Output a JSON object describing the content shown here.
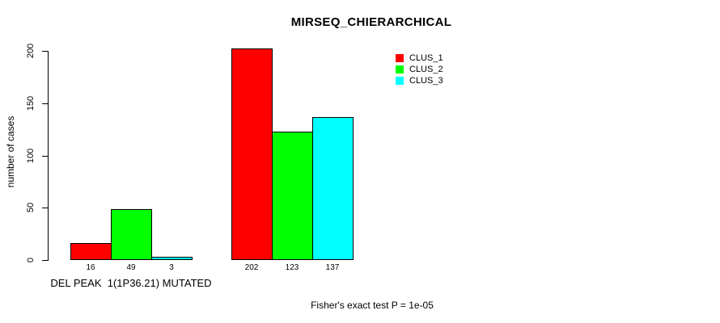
{
  "chart_data": {
    "type": "bar",
    "title": "MIRSEQ_CHIERARCHICAL",
    "ylabel": "number of cases",
    "xlabel": "",
    "ylim": [
      0,
      200
    ],
    "yticks": [
      0,
      50,
      100,
      150,
      200
    ],
    "grid": false,
    "legend_position": "top-right",
    "categories": [
      "DEL PEAK  1(1P36.21) MUTATED",
      ""
    ],
    "series": [
      {
        "name": "CLUS_1",
        "color": "#ff0000",
        "values": [
          16,
          202
        ]
      },
      {
        "name": "CLUS_2",
        "color": "#00ff00",
        "values": [
          49,
          123
        ]
      },
      {
        "name": "CLUS_3",
        "color": "#00ffff",
        "values": [
          3,
          137
        ]
      }
    ],
    "annotation": "Fisher's exact test P = 1e-05"
  }
}
